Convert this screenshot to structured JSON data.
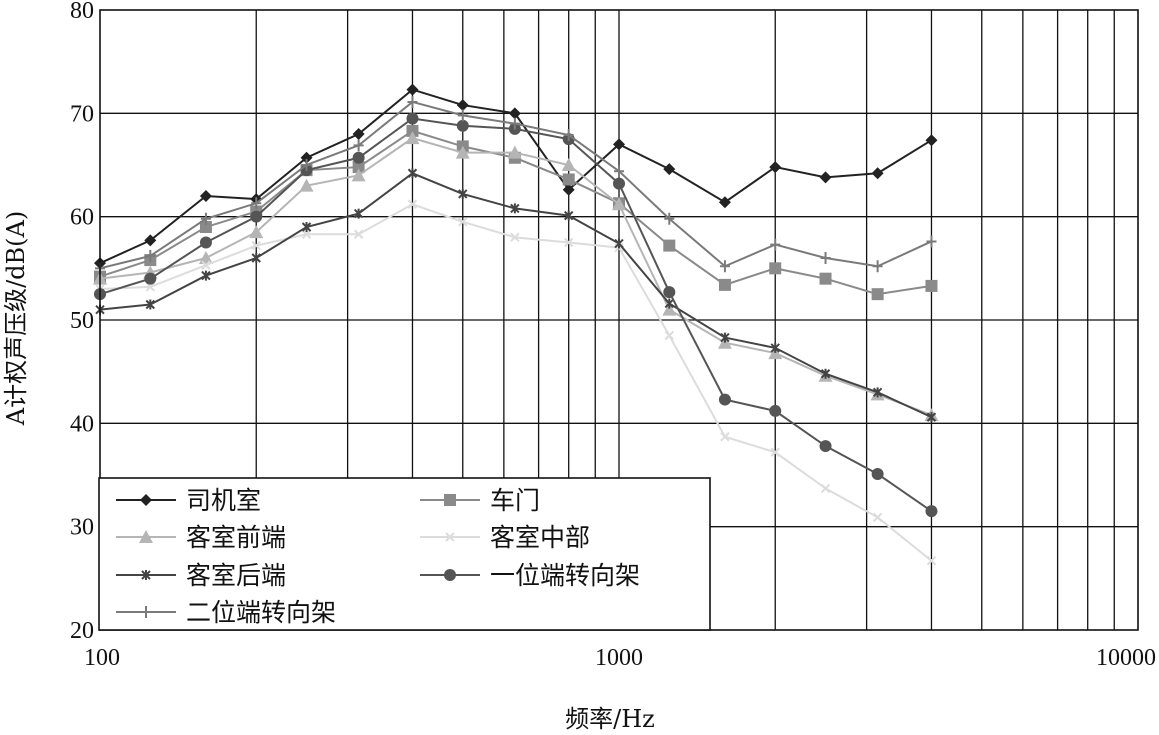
{
  "chart_data": {
    "type": "line",
    "title": "",
    "xlabel": "频率/Hz",
    "ylabel": "A计权声压级/dB(A)",
    "x_scale": "log",
    "xlim": [
      100,
      10000
    ],
    "ylim": [
      20,
      80
    ],
    "x_ticks": [
      100,
      1000,
      10000
    ],
    "x_tick_labels": [
      "100",
      "1000",
      "10000"
    ],
    "y_ticks": [
      20,
      30,
      40,
      50,
      60,
      70,
      80
    ],
    "y_tick_labels": [
      "20",
      "30",
      "40",
      "50",
      "60",
      "70",
      "80"
    ],
    "grid": true,
    "legend_position": "bottom-left",
    "x": [
      100,
      125,
      160,
      200,
      250,
      315,
      400,
      500,
      630,
      800,
      1000,
      1250,
      1600,
      2000,
      2500,
      3150,
      4000
    ],
    "series": [
      {
        "name": "司机室",
        "color": "#222222",
        "marker": "diamond",
        "values": [
          55.5,
          57.7,
          62,
          61.7,
          65.7,
          68,
          72.3,
          70.8,
          70,
          62.6,
          67,
          64.6,
          61.4,
          64.8,
          63.8,
          64.2,
          67.4
        ]
      },
      {
        "name": "车门",
        "color": "#8a8a8a",
        "marker": "square",
        "values": [
          54.2,
          55.8,
          59,
          60.5,
          64.5,
          64.8,
          68.3,
          66.8,
          65.7,
          63.6,
          61.3,
          57.2,
          53.4,
          55,
          54,
          52.5,
          53.3
        ]
      },
      {
        "name": "客室前端",
        "color": "#b5b5b5",
        "marker": "triangle",
        "values": [
          54,
          54.6,
          56,
          58.5,
          63,
          64,
          67.6,
          66.2,
          66.2,
          65,
          61.2,
          51,
          47.8,
          46.8,
          44.6,
          42.8,
          40.8
        ]
      },
      {
        "name": "客室中部",
        "color": "#dcdcdc",
        "marker": "x",
        "values": [
          53,
          53.2,
          55.3,
          57.2,
          58.3,
          58.3,
          61.2,
          59.5,
          58,
          57.5,
          57,
          48.5,
          38.7,
          37.2,
          33.7,
          30.9,
          26.7
        ]
      },
      {
        "name": "客室后端",
        "color": "#444444",
        "marker": "star",
        "values": [
          51,
          51.5,
          54.3,
          56,
          59,
          60.3,
          64.2,
          62.2,
          60.8,
          60.1,
          57.4,
          51.6,
          48.3,
          47.3,
          44.8,
          43,
          40.6
        ]
      },
      {
        "name": "一位端转向架",
        "color": "#555555",
        "marker": "circle",
        "values": [
          52.5,
          54,
          57.5,
          60,
          64.5,
          65.7,
          69.5,
          68.8,
          68.5,
          67.5,
          63.2,
          52.7,
          42.3,
          41.2,
          37.8,
          35.1,
          31.5
        ]
      },
      {
        "name": "二位端转向架",
        "color": "#7a7a7a",
        "marker": "plus",
        "values": [
          55,
          56.2,
          59.8,
          61.3,
          65,
          66.9,
          71.1,
          69.8,
          69,
          67.9,
          64.4,
          59.8,
          55.2,
          57.3,
          56,
          55.2,
          57.6
        ]
      }
    ]
  }
}
